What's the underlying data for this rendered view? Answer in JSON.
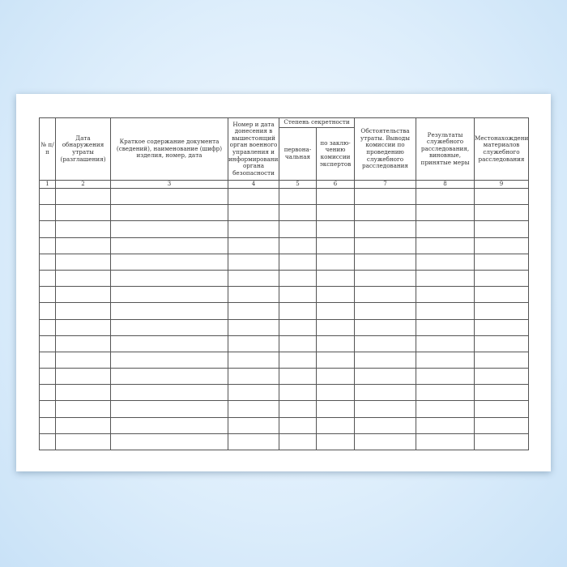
{
  "table": {
    "headers": [
      "№ п/п",
      "Дата обнаружения утраты (разглашения)",
      "Краткое содержание документа (сведений), наименование (шифр) изделия, номер, дата",
      "Номер и дата донесения в вышестоящий орган военного управления и информирования органа безопасности",
      "Степень секретности",
      "Обстоятельства утраты. Выводы комиссии по проведению служебного расследования",
      "Результаты служебного расследования, виновные, принятые меры",
      "Местонахождение материалов служебного расследования"
    ],
    "subheaders": [
      "первона-чальная",
      "по заклю-чению комиссии экспертов"
    ],
    "column_numbers": [
      "1",
      "2",
      "3",
      "4",
      "5",
      "6",
      "7",
      "8",
      "9"
    ],
    "empty_rows": 16
  },
  "colors": {
    "background": "#dcedfb",
    "sheet": "#ffffff",
    "lines": "#555555"
  }
}
